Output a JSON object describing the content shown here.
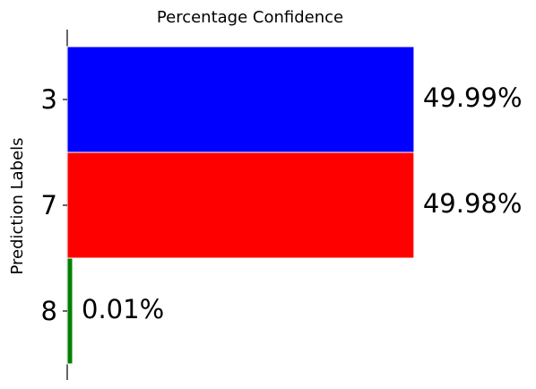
{
  "chart_data": {
    "type": "bar",
    "orientation": "horizontal",
    "title": "Percentage Confidence",
    "xlabel": "",
    "ylabel": "Prediction Labels",
    "categories": [
      "3",
      "7",
      "8"
    ],
    "values": [
      49.99,
      49.98,
      0.01
    ],
    "value_labels": [
      "49.99%",
      "49.98%",
      "0.01%"
    ],
    "colors": [
      "#0000ff",
      "#ff0000",
      "#008000"
    ],
    "xlim": [
      0,
      50
    ],
    "grid": false,
    "legend": "none",
    "axes": {
      "x_visible": false,
      "left_spine": true
    }
  }
}
